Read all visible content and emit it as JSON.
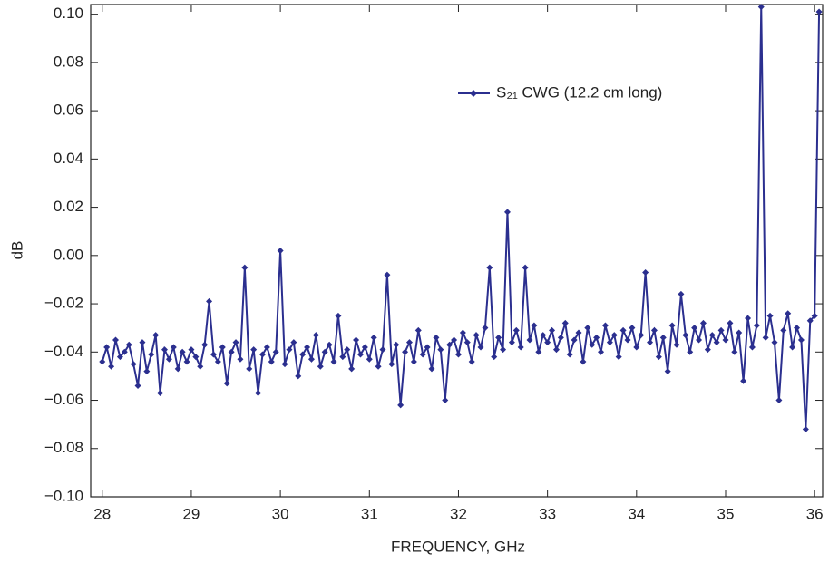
{
  "chart_data": {
    "type": "line",
    "x_label": "FREQUENCY, GHz",
    "y_label": "dB",
    "x": [
      28.0,
      28.05,
      28.1,
      28.15,
      28.2,
      28.25,
      28.3,
      28.35,
      28.4,
      28.45,
      28.5,
      28.55,
      28.6,
      28.65,
      28.7,
      28.75,
      28.8,
      28.85,
      28.9,
      28.95,
      29.0,
      29.05,
      29.1,
      29.15,
      29.2,
      29.25,
      29.3,
      29.35,
      29.4,
      29.45,
      29.5,
      29.55,
      29.6,
      29.65,
      29.7,
      29.75,
      29.8,
      29.85,
      29.9,
      29.95,
      30.0,
      30.05,
      30.1,
      30.15,
      30.2,
      30.25,
      30.3,
      30.35,
      30.4,
      30.45,
      30.5,
      30.55,
      30.6,
      30.65,
      30.7,
      30.75,
      30.8,
      30.85,
      30.9,
      30.95,
      31.0,
      31.05,
      31.1,
      31.15,
      31.2,
      31.25,
      31.3,
      31.35,
      31.4,
      31.45,
      31.5,
      31.55,
      31.6,
      31.65,
      31.7,
      31.75,
      31.8,
      31.85,
      31.9,
      31.95,
      32.0,
      32.05,
      32.1,
      32.15,
      32.2,
      32.25,
      32.3,
      32.35,
      32.4,
      32.45,
      32.5,
      32.55,
      32.6,
      32.65,
      32.7,
      32.75,
      32.8,
      32.85,
      32.9,
      32.95,
      33.0,
      33.05,
      33.1,
      33.15,
      33.2,
      33.25,
      33.3,
      33.35,
      33.4,
      33.45,
      33.5,
      33.55,
      33.6,
      33.65,
      33.7,
      33.75,
      33.8,
      33.85,
      33.9,
      33.95,
      34.0,
      34.05,
      34.1,
      34.15,
      34.2,
      34.25,
      34.3,
      34.35,
      34.4,
      34.45,
      34.5,
      34.55,
      34.6,
      34.65,
      34.7,
      34.75,
      34.8,
      34.85,
      34.9,
      34.95,
      35.0,
      35.05,
      35.1,
      35.15,
      35.2,
      35.25,
      35.3,
      35.35,
      35.4,
      35.45,
      35.5,
      35.55,
      35.6,
      35.65,
      35.7,
      35.75,
      35.8,
      35.85,
      35.9,
      35.95,
      36.0,
      36.05
    ],
    "series": [
      {
        "name": "S₂₁ CWG (12.2 cm long)",
        "color": "#2b2f8f",
        "values": [
          -0.044,
          -0.038,
          -0.046,
          -0.035,
          -0.042,
          -0.04,
          -0.037,
          -0.045,
          -0.054,
          -0.036,
          -0.048,
          -0.041,
          -0.033,
          -0.057,
          -0.039,
          -0.043,
          -0.038,
          -0.047,
          -0.04,
          -0.044,
          -0.039,
          -0.042,
          -0.046,
          -0.037,
          -0.019,
          -0.041,
          -0.044,
          -0.038,
          -0.053,
          -0.04,
          -0.036,
          -0.043,
          -0.005,
          -0.047,
          -0.039,
          -0.057,
          -0.041,
          -0.038,
          -0.044,
          -0.04,
          0.002,
          -0.045,
          -0.039,
          -0.036,
          -0.05,
          -0.041,
          -0.038,
          -0.043,
          -0.033,
          -0.046,
          -0.04,
          -0.037,
          -0.044,
          -0.025,
          -0.042,
          -0.039,
          -0.047,
          -0.035,
          -0.041,
          -0.038,
          -0.043,
          -0.034,
          -0.046,
          -0.039,
          -0.008,
          -0.045,
          -0.037,
          -0.062,
          -0.04,
          -0.036,
          -0.044,
          -0.031,
          -0.041,
          -0.038,
          -0.047,
          -0.034,
          -0.039,
          -0.06,
          -0.037,
          -0.035,
          -0.041,
          -0.032,
          -0.036,
          -0.044,
          -0.033,
          -0.038,
          -0.03,
          -0.005,
          -0.042,
          -0.034,
          -0.039,
          0.018,
          -0.036,
          -0.031,
          -0.038,
          -0.005,
          -0.035,
          -0.029,
          -0.04,
          -0.033,
          -0.036,
          -0.031,
          -0.039,
          -0.034,
          -0.028,
          -0.041,
          -0.035,
          -0.032,
          -0.044,
          -0.03,
          -0.037,
          -0.034,
          -0.04,
          -0.029,
          -0.036,
          -0.033,
          -0.042,
          -0.031,
          -0.035,
          -0.03,
          -0.038,
          -0.033,
          -0.007,
          -0.036,
          -0.031,
          -0.042,
          -0.034,
          -0.048,
          -0.029,
          -0.037,
          -0.016,
          -0.033,
          -0.04,
          -0.03,
          -0.035,
          -0.028,
          -0.039,
          -0.033,
          -0.036,
          -0.031,
          -0.035,
          -0.028,
          -0.04,
          -0.032,
          -0.052,
          -0.026,
          -0.038,
          -0.029,
          0.103,
          -0.034,
          -0.025,
          -0.036,
          -0.06,
          -0.031,
          -0.024,
          -0.038,
          -0.03,
          -0.035,
          -0.072,
          -0.027,
          -0.025,
          0.101
        ]
      }
    ],
    "xlim": [
      27.87,
      36.09
    ],
    "xticks": [
      28,
      29,
      30,
      31,
      32,
      33,
      34,
      35,
      36
    ],
    "ylim": [
      -0.1,
      0.104
    ],
    "yticks": [
      {
        "value": -0.1,
        "label": "−0.10"
      },
      {
        "value": -0.08,
        "label": "−0.08"
      },
      {
        "value": -0.06,
        "label": "−0.06"
      },
      {
        "value": -0.04,
        "label": "−0.04"
      },
      {
        "value": -0.02,
        "label": "−0.02"
      },
      {
        "value": 0,
        "label": "0.00"
      },
      {
        "value": 0.02,
        "label": "0.02"
      },
      {
        "value": 0.04,
        "label": "0.04"
      },
      {
        "value": 0.06,
        "label": "0.06"
      },
      {
        "value": 0.08,
        "label": "0.08"
      },
      {
        "value": 0.1,
        "label": "0.10"
      }
    ]
  }
}
